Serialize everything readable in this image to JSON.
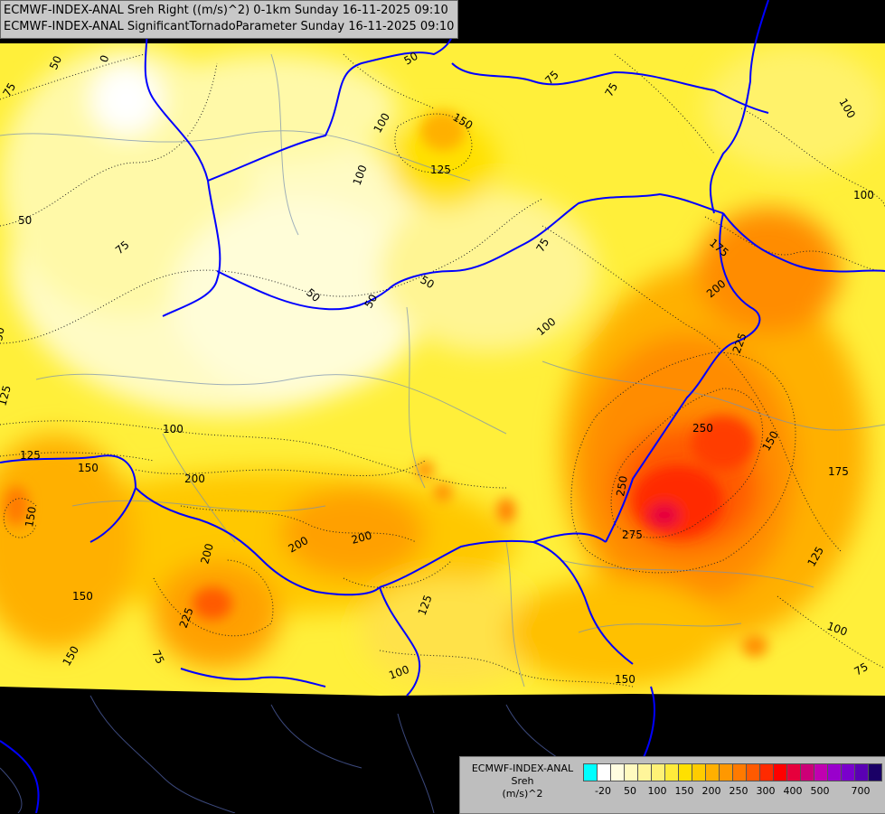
{
  "header": {
    "line1": "ECMWF-INDEX-ANAL Sreh Right ((m/s)^2) 0-1km Sunday 16-11-2025 09:10",
    "line2": "ECMWF-INDEX-ANAL SignificantTornadoParameter Sunday 16-11-2025 09:10"
  },
  "legend": {
    "title_line1": "ECMWF-INDEX-ANAL",
    "title_line2": "Sreh",
    "title_line3": "(m/s)^2",
    "colors": [
      "#00ffff",
      "#ffffff",
      "#fffde0",
      "#fffabf",
      "#fff59a",
      "#fff176",
      "#ffeb3b",
      "#ffe000",
      "#ffcc00",
      "#ffb000",
      "#ff9800",
      "#ff7a00",
      "#ff5a00",
      "#ff2a00",
      "#ff0000",
      "#e6003c",
      "#cc0077",
      "#c000b0",
      "#9900cc",
      "#7a00cc",
      "#5a00b4",
      "#1a0066"
    ],
    "ticks": [
      "-20",
      "50",
      "100",
      "150",
      "200",
      "250",
      "300",
      "400",
      "500",
      "700"
    ]
  },
  "contour_labels": [
    "0",
    "50",
    "75",
    "100",
    "125",
    "150",
    "175",
    "200",
    "225",
    "250",
    "275"
  ]
}
